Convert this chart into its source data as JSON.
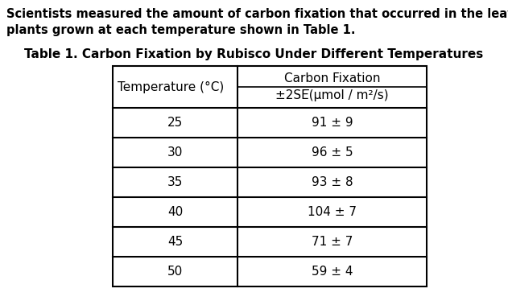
{
  "intro_text_line1": "Scientists measured the amount of carbon fixation that occurred in the leaves of soybean",
  "intro_text_line2": "plants grown at each temperature shown in Table 1.",
  "table_title": "Table 1. Carbon Fixation by Rubisco Under Different Temperatures",
  "col1_header_line1": "Temperature (°C)",
  "col2_header_line1": "Carbon Fixation",
  "col2_header_line2": "±2SE̅(μmol / m²/s)",
  "temperatures": [
    "25",
    "30",
    "35",
    "40",
    "45",
    "50"
  ],
  "carbon_fixation": [
    "91 ± 9",
    "96 ± 5",
    "93 ± 8",
    "104 ± 7",
    "71 ± 7",
    "59 ± 4"
  ],
  "bg_color": "#ffffff",
  "text_color": "#000000",
  "intro_fontsize": 10.5,
  "title_fontsize": 11,
  "table_fontsize": 11
}
